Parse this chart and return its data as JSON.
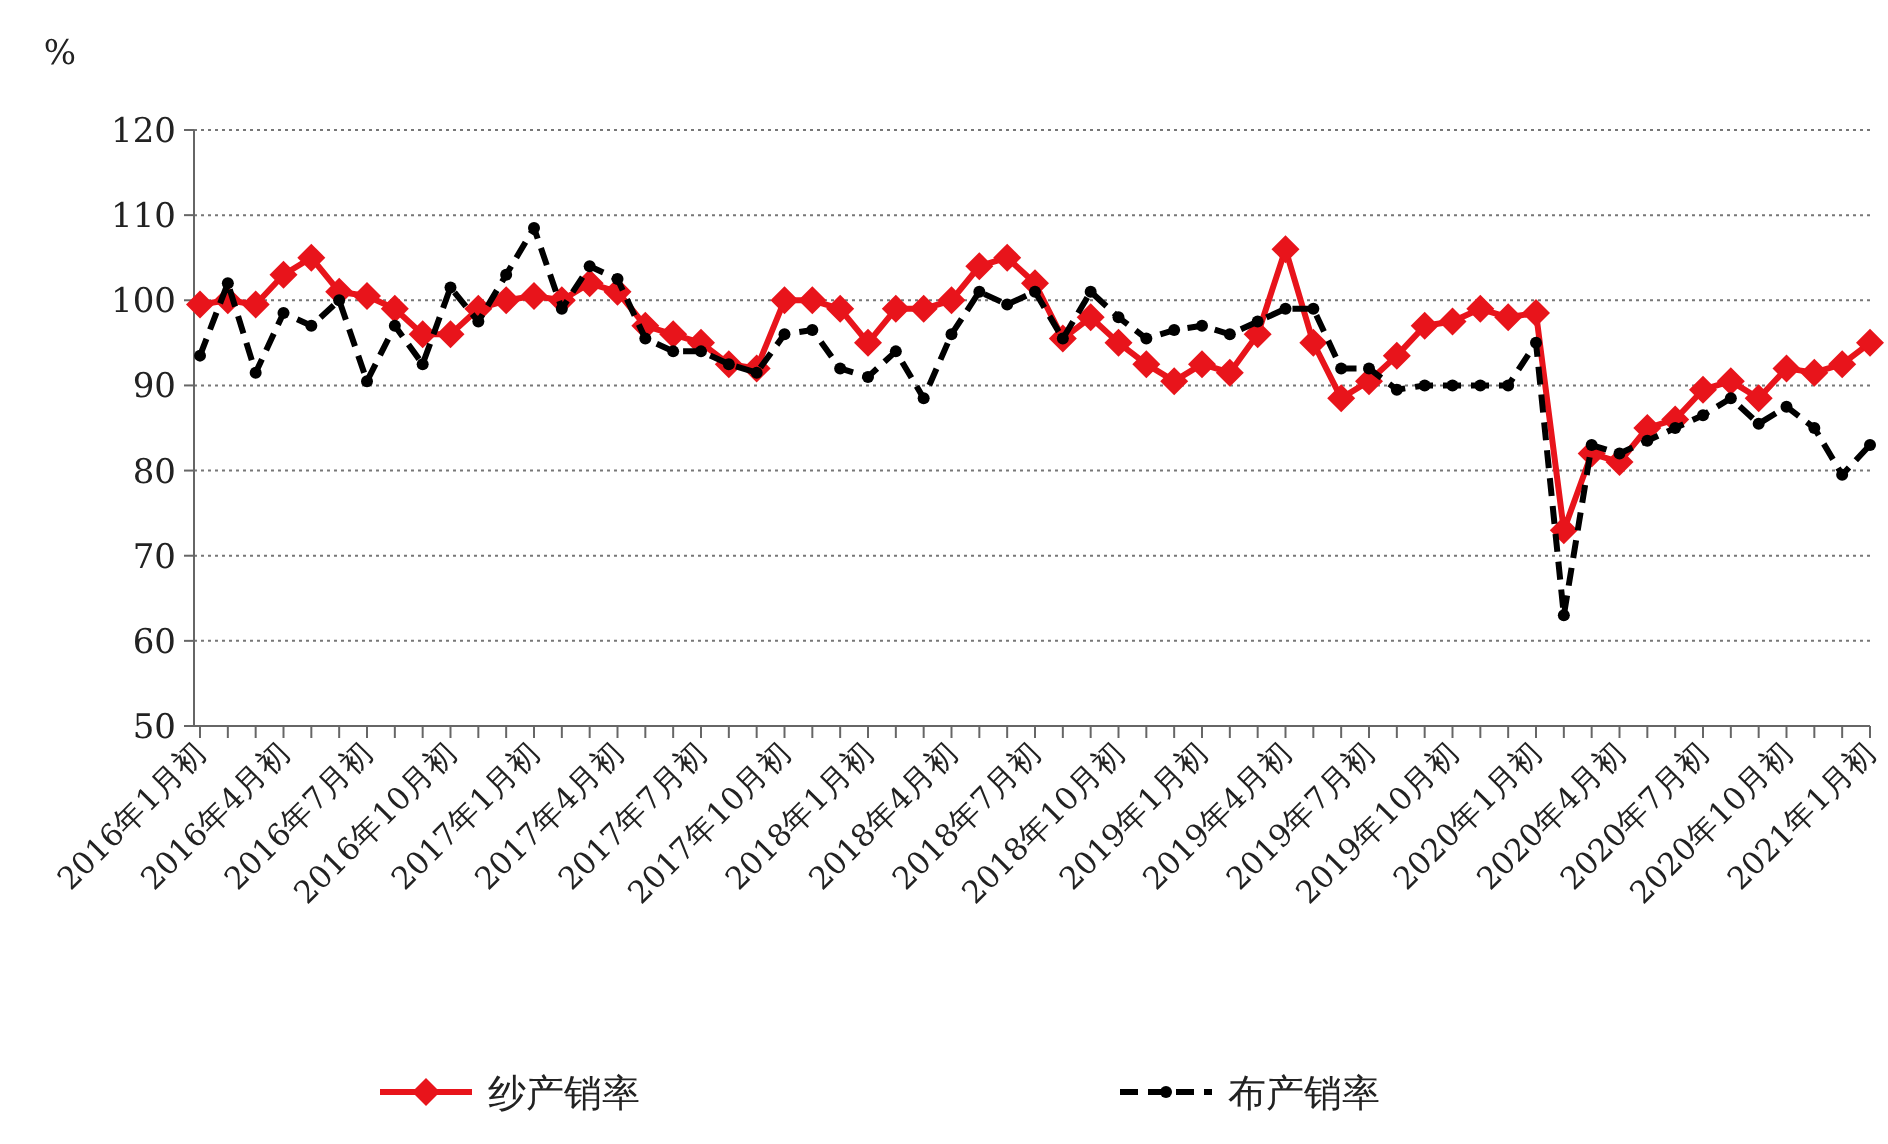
{
  "chart_data": {
    "type": "line",
    "ylabel": "%",
    "categories": [
      "2016年1月初",
      null,
      null,
      "2016年4月初",
      null,
      null,
      "2016年7月初",
      null,
      null,
      "2016年10月初",
      null,
      null,
      "2017年1月初",
      null,
      null,
      "2017年4月初",
      null,
      null,
      "2017年7月初",
      null,
      null,
      "2017年10月初",
      null,
      null,
      "2018年1月初",
      null,
      null,
      "2018年4月初",
      null,
      null,
      "2018年7月初",
      null,
      null,
      "2018年10月初",
      null,
      null,
      "2019年1月初",
      null,
      null,
      "2019年4月初",
      null,
      null,
      "2019年7月初",
      null,
      null,
      "2019年10月初",
      null,
      null,
      "2020年1月初",
      null,
      null,
      "2020年4月初",
      null,
      null,
      "2020年7月初",
      null,
      null,
      "2020年10月初",
      null,
      null,
      "2021年1月初"
    ],
    "ylim": [
      50,
      120
    ],
    "yticks": [
      50,
      60,
      70,
      80,
      90,
      100,
      110,
      120
    ],
    "grid": "y",
    "legend": "bottom",
    "series": [
      {
        "name": "纱产销率",
        "color": "#e8141b",
        "marker": "diamond",
        "line_style": "solid",
        "values": [
          99.5,
          100,
          99.5,
          103,
          105,
          101,
          100.5,
          99,
          96,
          96,
          99,
          100,
          100.5,
          100,
          102,
          101,
          97,
          96,
          95,
          92.5,
          92,
          100,
          100,
          99,
          95,
          99,
          99,
          100,
          104,
          105,
          102,
          95.5,
          98,
          95,
          92.5,
          90.5,
          92.5,
          91.5,
          96,
          106,
          95,
          88.5,
          90.5,
          93.5,
          97,
          97.5,
          99,
          98,
          98.5,
          73,
          82,
          81,
          85,
          86,
          89.5,
          90.5,
          88.5,
          92,
          91.5,
          92.5,
          95
        ]
      },
      {
        "name": "布产销率",
        "color": "#000000",
        "marker": "circle",
        "line_style": "dashed",
        "values": [
          93.5,
          102,
          91.5,
          98.5,
          97,
          100,
          90.5,
          97,
          92.5,
          101.5,
          97.5,
          103,
          108.5,
          99,
          104,
          102.5,
          95.5,
          94,
          94,
          92.5,
          91.5,
          96,
          96.5,
          92,
          91,
          94,
          88.5,
          96,
          101,
          99.5,
          101,
          95.5,
          101,
          98,
          95.5,
          96.5,
          97,
          96,
          97.5,
          99,
          99,
          92,
          92,
          89.5,
          90,
          90,
          90,
          90,
          95,
          63,
          83,
          82,
          83.5,
          85,
          86.5,
          88.5,
          85.5,
          87.5,
          85,
          79.5,
          83
        ]
      }
    ]
  }
}
